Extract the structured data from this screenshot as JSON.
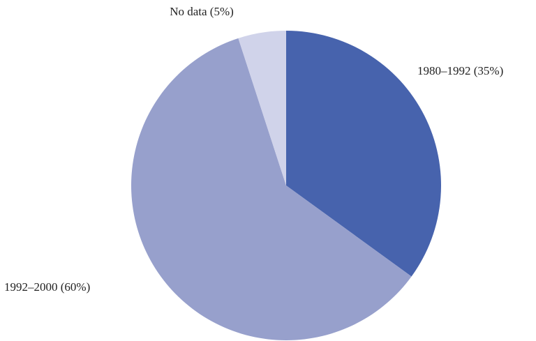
{
  "chart_data": {
    "type": "pie",
    "categories": [
      "1980–1992",
      "1992–2000",
      "No data"
    ],
    "values": [
      35,
      60,
      5
    ],
    "value_labels": [
      "(35%)",
      "(60%)",
      "(5%)"
    ],
    "colors": [
      "#4763ad",
      "#97a0cc",
      "#d0d3ea"
    ]
  }
}
